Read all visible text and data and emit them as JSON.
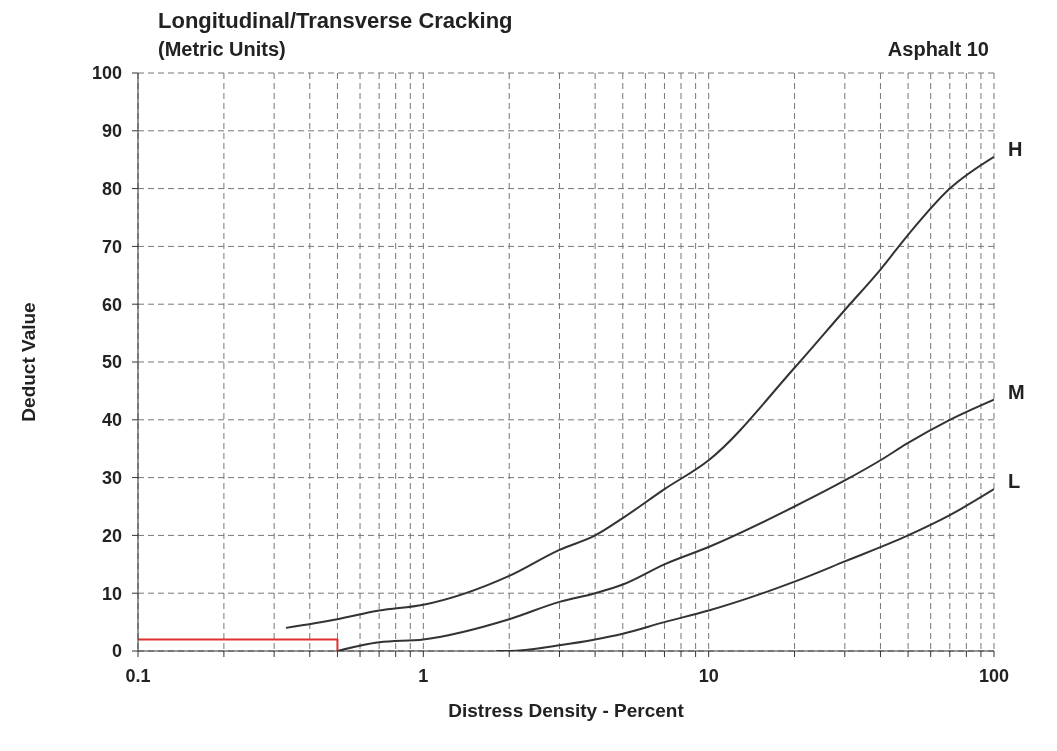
{
  "chart_data": {
    "type": "line",
    "title": "Longitudinal/Transverse Cracking",
    "subtitle": "(Metric Units)",
    "annotations": [
      "Asphalt 10"
    ],
    "xlabel": "Distress Density - Percent",
    "ylabel": "Deduct Value",
    "log": "x",
    "grid": true,
    "legend": false,
    "marker": "none",
    "line_style": "solid",
    "xlim": [
      0.1,
      100
    ],
    "ylim": [
      0,
      100
    ],
    "xticks": [
      0.1,
      {
        "value": 0.2,
        "label": null
      },
      {
        "value": 0.3,
        "label": null
      },
      {
        "value": 0.4,
        "label": null
      },
      {
        "value": 0.5,
        "label": null
      },
      {
        "value": 0.6,
        "label": null
      },
      {
        "value": 0.7,
        "label": null
      },
      {
        "value": 0.8,
        "label": null
      },
      {
        "value": 0.9,
        "label": null
      },
      1,
      {
        "value": 2,
        "label": null
      },
      {
        "value": 3,
        "label": null
      },
      {
        "value": 4,
        "label": null
      },
      {
        "value": 5,
        "label": null
      },
      {
        "value": 6,
        "label": null
      },
      {
        "value": 7,
        "label": null
      },
      {
        "value": 8,
        "label": null
      },
      {
        "value": 9,
        "label": null
      },
      10,
      {
        "value": 20,
        "label": null
      },
      {
        "value": 30,
        "label": null
      },
      {
        "value": 40,
        "label": null
      },
      {
        "value": 50,
        "label": null
      },
      {
        "value": 60,
        "label": null
      },
      {
        "value": 70,
        "label": null
      },
      {
        "value": 80,
        "label": null
      },
      {
        "value": 90,
        "label": null
      },
      100
    ],
    "yticks": [
      0,
      10,
      20,
      30,
      40,
      50,
      60,
      70,
      80,
      90,
      100
    ],
    "series": [
      {
        "name": "H",
        "color": "#333333",
        "x": [
          0.33,
          0.5,
          0.7,
          1,
          2,
          3,
          4,
          5,
          7,
          10,
          20,
          30,
          40,
          50,
          70,
          100
        ],
        "values": [
          4,
          5.5,
          7,
          8,
          13,
          17.5,
          20,
          23,
          28,
          33,
          49,
          59,
          66,
          72,
          80,
          85.5
        ]
      },
      {
        "name": "M",
        "color": "#333333",
        "x": [
          0.5,
          0.7,
          1,
          2,
          3,
          4,
          5,
          7,
          10,
          20,
          30,
          40,
          50,
          70,
          100
        ],
        "values": [
          0,
          1.5,
          2,
          5.5,
          8.5,
          10,
          11.5,
          15,
          18,
          25,
          29.5,
          33,
          36,
          40,
          43.5
        ]
      },
      {
        "name": "L",
        "color": "#333333",
        "x": [
          1.8,
          2,
          3,
          4,
          5,
          7,
          10,
          20,
          30,
          50,
          70,
          100
        ],
        "values": [
          0,
          0,
          1,
          2,
          3,
          5,
          7,
          12,
          15.5,
          20,
          23.5,
          28
        ]
      },
      {
        "color": "#e03030",
        "x": [
          0.1,
          0.5,
          0.5
        ],
        "values": [
          2,
          2,
          0
        ]
      }
    ]
  }
}
